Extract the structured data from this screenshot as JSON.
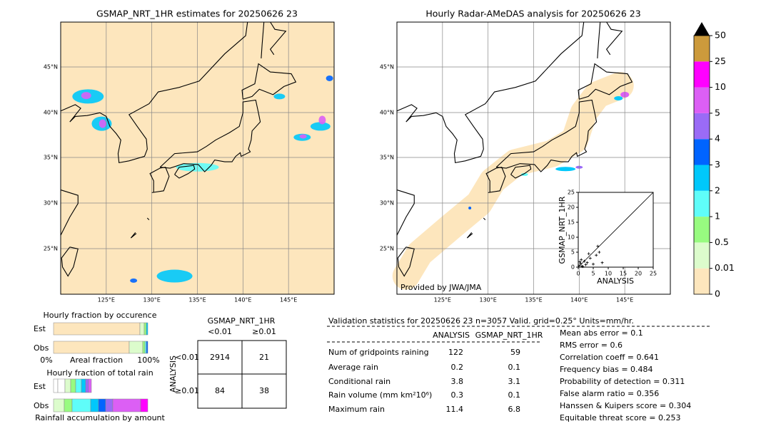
{
  "left_map": {
    "title": "GSMAP_NRT_1HR estimates for 20250626 23",
    "lat_labels": [
      "45°N",
      "40°N",
      "35°N",
      "30°N",
      "25°N"
    ],
    "lon_labels": [
      "125°E",
      "130°E",
      "135°E",
      "140°E",
      "145°E"
    ]
  },
  "right_map": {
    "title": "Hourly Radar-AMeDAS analysis for 20250626 23",
    "lat_labels": [
      "45°N",
      "40°N",
      "35°N",
      "30°N",
      "25°N"
    ],
    "lon_labels": [
      "125°E",
      "130°E",
      "135°E",
      "140°E",
      "145°E"
    ],
    "credit": "Provided by JWA/JMA"
  },
  "inset": {
    "x_label": "ANALYSIS",
    "y_label": "GSMAP_NRT_1HR",
    "ticks": [
      0,
      5,
      10,
      15,
      20,
      25
    ],
    "x": [
      0.3,
      0.8,
      1.2,
      2,
      2.5,
      3,
      4,
      5,
      6,
      6.5,
      7,
      8,
      1,
      3.5,
      0.5,
      1.5
    ],
    "y": [
      0.5,
      1.2,
      0.3,
      2,
      0.8,
      1.5,
      3,
      1,
      4,
      7,
      5,
      1.5,
      2.5,
      4.5,
      1.8,
      0.2
    ]
  },
  "colorbar": {
    "labels": [
      "0",
      "0.01",
      "0.5",
      "1",
      "2",
      "3",
      "4",
      "5",
      "10",
      "25",
      "50"
    ],
    "colors": [
      "#fde6bd",
      "#dcfccc",
      "#98fb80",
      "#5ffdf9",
      "#00c8fb",
      "#0064ff",
      "#9a6bf6",
      "#dc5ff5",
      "#ff00ff",
      "#cc9a3c"
    ]
  },
  "occurrence": {
    "title": "Hourly fraction by occurence",
    "rows": [
      "Est",
      "Obs"
    ],
    "axis_left": "0%",
    "axis_mid": "Areal fraction",
    "axis_right": "100%"
  },
  "total_rain": {
    "title": "Hourly fraction of total rain",
    "rows": [
      "Est",
      "Obs"
    ],
    "footer": "Rainfall accumulation by amount"
  },
  "contingency": {
    "col_title": "GSMAP_NRT_1HR",
    "cols": [
      "<0.01",
      "≥0.01"
    ],
    "row_title": "ANALYSIS",
    "rows": [
      "<0.01",
      "≥0.01"
    ],
    "cells": [
      [
        "2914",
        "21"
      ],
      [
        "84",
        "38"
      ]
    ]
  },
  "validation": {
    "header": "Validation statistics for 20250626 23  n=3057 Valid. grid=0.25° Units=mm/hr.",
    "columns": [
      "ANALYSIS",
      "GSMAP_NRT_1HR"
    ],
    "rows": [
      [
        "Num of gridpoints raining",
        "122",
        "59"
      ],
      [
        "Average rain",
        "0.2",
        "0.1"
      ],
      [
        "Conditional rain",
        "3.8",
        "3.1"
      ],
      [
        "Rain volume (mm km²10⁶)",
        "0.3",
        "0.1"
      ],
      [
        "Maximum rain",
        "11.4",
        "6.8"
      ]
    ],
    "scores": [
      "Mean abs error =    0.1",
      "RMS error =    0.6",
      "Correlation coeff =  0.641",
      "Frequency bias =  0.484",
      "Probability of detection =  0.311",
      "False alarm ratio =  0.356",
      "Hanssen & Kuipers score =  0.304",
      "Equitable threat score =  0.253"
    ]
  }
}
